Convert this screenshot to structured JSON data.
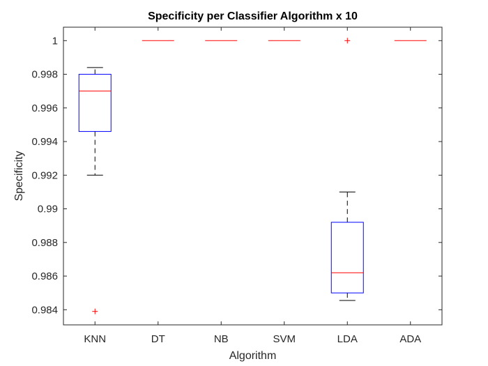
{
  "chart_data": {
    "type": "box",
    "title": "Specificity per Classifier Algorithm x 10",
    "xlabel": "Algorithm",
    "ylabel": "Specificity",
    "categories": [
      "KNN",
      "DT",
      "NB",
      "SVM",
      "LDA",
      "ADA"
    ],
    "ylim": [
      0.9831,
      1.0008
    ],
    "yticks": [
      0.984,
      0.986,
      0.988,
      0.99,
      0.992,
      0.994,
      0.996,
      0.998,
      1
    ],
    "ytick_labels": [
      "0.984",
      "0.986",
      "0.988",
      "0.99",
      "0.992",
      "0.994",
      "0.996",
      "0.998",
      "1"
    ],
    "boxes": [
      {
        "category": "KNN",
        "whisker_low": 0.992,
        "q1": 0.9946,
        "median": 0.997,
        "q3": 0.998,
        "whisker_high": 0.9984,
        "outliers": [
          0.9839
        ]
      },
      {
        "category": "DT",
        "whisker_low": 1,
        "q1": 1,
        "median": 1,
        "q3": 1,
        "whisker_high": 1,
        "outliers": []
      },
      {
        "category": "NB",
        "whisker_low": 1,
        "q1": 1,
        "median": 1,
        "q3": 1,
        "whisker_high": 1,
        "outliers": []
      },
      {
        "category": "SVM",
        "whisker_low": 1,
        "q1": 1,
        "median": 1,
        "q3": 1,
        "whisker_high": 1,
        "outliers": []
      },
      {
        "category": "LDA",
        "whisker_low": 0.98455,
        "q1": 0.985,
        "median": 0.9862,
        "q3": 0.9892,
        "whisker_high": 0.991,
        "outliers": [
          1
        ]
      },
      {
        "category": "ADA",
        "whisker_low": 1,
        "q1": 1,
        "median": 1,
        "q3": 1,
        "whisker_high": 1,
        "outliers": []
      }
    ],
    "grid": false,
    "colors": {
      "box": "#0000ff",
      "median": "#ff0000",
      "whisker": "#000000",
      "outlier": "#ff0000",
      "axis": "#262626"
    }
  }
}
